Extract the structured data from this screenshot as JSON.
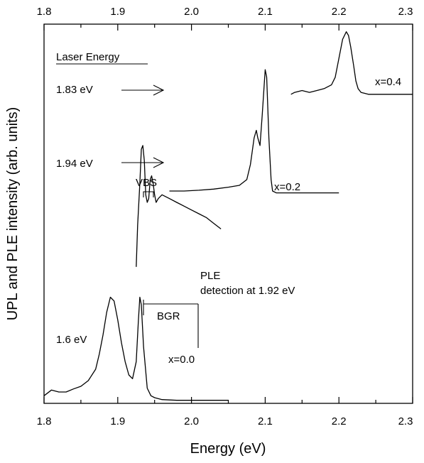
{
  "chart_data": {
    "type": "line",
    "xlabel": "Energy (eV)",
    "ylabel": "UPL and PLE intensity (arb. units)",
    "xlim": [
      1.8,
      2.3
    ],
    "x_ticks": [
      "1.8",
      "1.9",
      "2.0",
      "2.1",
      "2.2",
      "2.3"
    ],
    "top_axis_ticks": [
      "1.8",
      "1.9",
      "2.0",
      "2.1",
      "2.2",
      "2.3"
    ],
    "ylim": [
      0,
      1
    ],
    "y_tick_labels": false,
    "grid": false,
    "series": [
      {
        "name": "x=0.0",
        "x": [
          1.8,
          1.81,
          1.82,
          1.83,
          1.84,
          1.85,
          1.86,
          1.87,
          1.875,
          1.88,
          1.885,
          1.89,
          1.895,
          1.9,
          1.905,
          1.91,
          1.915,
          1.92,
          1.925,
          1.928,
          1.93,
          1.932,
          1.935,
          1.94,
          1.945,
          1.95,
          1.96,
          1.98,
          2.0,
          2.02,
          2.04,
          2.05
        ],
        "y": [
          0.02,
          0.035,
          0.03,
          0.03,
          0.038,
          0.045,
          0.06,
          0.09,
          0.13,
          0.18,
          0.24,
          0.28,
          0.27,
          0.22,
          0.16,
          0.11,
          0.075,
          0.065,
          0.11,
          0.22,
          0.28,
          0.26,
          0.15,
          0.04,
          0.02,
          0.015,
          0.01,
          0.008,
          0.008,
          0.008,
          0.008,
          0.008
        ]
      },
      {
        "name": "PLE",
        "x": [
          1.925,
          1.927,
          1.93,
          1.932,
          1.934,
          1.936,
          1.938,
          1.94,
          1.942,
          1.944,
          1.946,
          1.948,
          1.95,
          1.952,
          1.955,
          1.96,
          1.97,
          1.98,
          1.99,
          2.0,
          2.01,
          2.02,
          2.03,
          2.04
        ],
        "y": [
          0.36,
          0.47,
          0.58,
          0.67,
          0.68,
          0.64,
          0.55,
          0.53,
          0.54,
          0.59,
          0.6,
          0.58,
          0.55,
          0.53,
          0.54,
          0.55,
          0.54,
          0.53,
          0.52,
          0.51,
          0.5,
          0.49,
          0.475,
          0.46
        ]
      },
      {
        "name": "x=0.2",
        "x": [
          1.97,
          1.99,
          2.01,
          2.03,
          2.05,
          2.065,
          2.075,
          2.08,
          2.085,
          2.088,
          2.09,
          2.093,
          2.096,
          2.1,
          2.102,
          2.105,
          2.108,
          2.11,
          2.115,
          2.13,
          2.15,
          2.17,
          2.2
        ],
        "y": [
          0.56,
          0.56,
          0.562,
          0.565,
          0.57,
          0.575,
          0.59,
          0.63,
          0.7,
          0.72,
          0.7,
          0.68,
          0.76,
          0.88,
          0.86,
          0.7,
          0.59,
          0.56,
          0.555,
          0.555,
          0.555,
          0.555,
          0.555
        ]
      },
      {
        "name": "x=0.4",
        "x": [
          2.135,
          2.14,
          2.15,
          2.16,
          2.17,
          2.18,
          2.19,
          2.195,
          2.2,
          2.205,
          2.21,
          2.213,
          2.216,
          2.22,
          2.223,
          2.226,
          2.23,
          2.24,
          2.26,
          2.28,
          2.3
        ],
        "y": [
          0.815,
          0.82,
          0.825,
          0.82,
          0.825,
          0.83,
          0.84,
          0.86,
          0.91,
          0.96,
          0.98,
          0.97,
          0.94,
          0.89,
          0.85,
          0.83,
          0.82,
          0.815,
          0.815,
          0.815,
          0.815
        ]
      }
    ],
    "annotations": {
      "laser_energy_heading": "Laser Energy",
      "laser_1": "1.83 eV",
      "laser_2": "1.94 eV",
      "laser_3": "1.6 eV",
      "vbs": "VBS",
      "ple_line1": "PLE",
      "ple_line2": "detection at 1.92 eV",
      "bgr": "BGR",
      "label_x00": "x=0.0",
      "label_x02": "x=0.2",
      "label_x04": "x=0.4"
    }
  }
}
